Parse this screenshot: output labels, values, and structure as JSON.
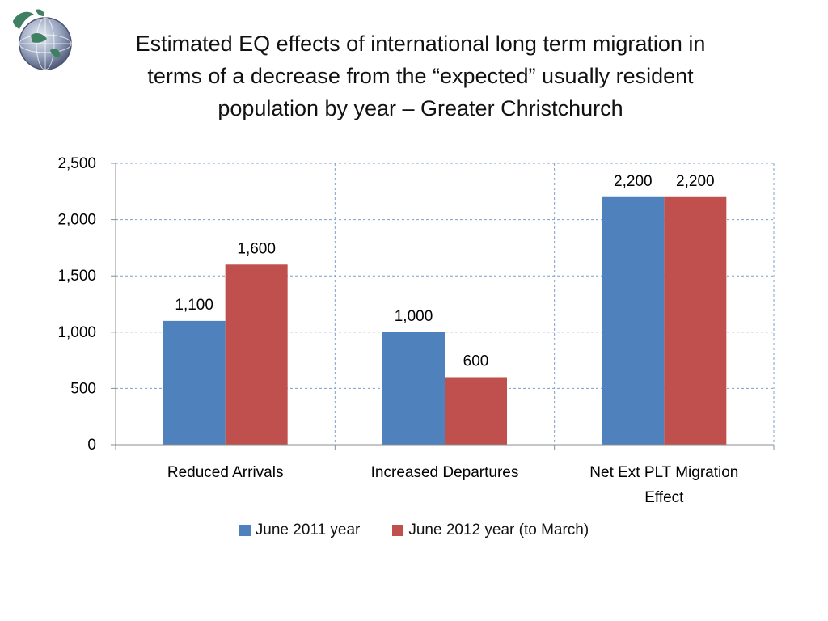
{
  "title_lines": [
    "Estimated EQ effects of international long term migration in",
    "terms of a decrease from the “expected” usually resident",
    "population by year – Greater Christchurch"
  ],
  "colors": {
    "series1": "#4f81bd",
    "series2": "#c0504d",
    "grid": "#7f9fc8",
    "axis": "#8c8c8c"
  },
  "chart_data": {
    "type": "bar",
    "title": "Estimated EQ effects of international long term migration in terms of a decrease from the “expected” usually resident population by year – Greater Christchurch",
    "categories": [
      [
        "Reduced Arrivals"
      ],
      [
        "Increased Departures"
      ],
      [
        "Net Ext PLT Migration",
        "Effect"
      ]
    ],
    "series": [
      {
        "name": "June 2011 year",
        "values": [
          1100,
          1000,
          2200
        ],
        "labels": [
          "1,100",
          "1,000",
          "2,200"
        ]
      },
      {
        "name": "June 2012 year (to March)",
        "values": [
          1600,
          600,
          2200
        ],
        "labels": [
          "1,600",
          "600",
          "2,200"
        ]
      }
    ],
    "ylim": [
      0,
      2500
    ],
    "yticks": [
      0,
      500,
      1000,
      1500,
      2000,
      2500
    ],
    "ytick_labels": [
      "0",
      "500",
      "1,000",
      "1,500",
      "2,000",
      "2,500"
    ],
    "grid": true,
    "legend_position": "bottom"
  }
}
